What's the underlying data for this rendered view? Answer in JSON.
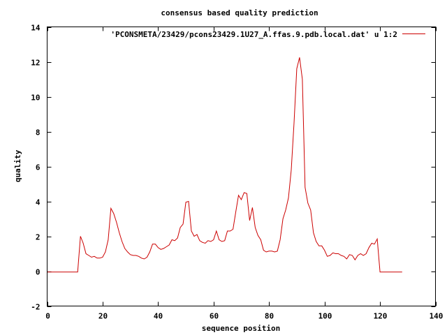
{
  "chart_data": {
    "type": "line",
    "title": "consensus based quality prediction",
    "xlabel": "sequence position",
    "ylabel": "quality",
    "xlim": [
      0,
      140
    ],
    "ylim": [
      -2,
      14
    ],
    "xticks": [
      0,
      20,
      40,
      60,
      80,
      100,
      120,
      140
    ],
    "yticks": [
      -2,
      0,
      2,
      4,
      6,
      8,
      10,
      12,
      14
    ],
    "grid": false,
    "legend": "top-right",
    "series": [
      {
        "name": "'PCONSMETA/23429/pcons23429.1U27_A.ffas.9.pdb.local.dat' u 1:2",
        "color": "#cc0000",
        "x": [
          0,
          1,
          2,
          3,
          4,
          5,
          6,
          7,
          8,
          9,
          10,
          11,
          12,
          13,
          14,
          15,
          16,
          17,
          18,
          19,
          20,
          21,
          22,
          23,
          24,
          25,
          26,
          27,
          28,
          29,
          30,
          31,
          32,
          33,
          34,
          35,
          36,
          37,
          38,
          39,
          40,
          41,
          42,
          43,
          44,
          45,
          46,
          47,
          48,
          49,
          50,
          51,
          52,
          53,
          54,
          55,
          56,
          57,
          58,
          59,
          60,
          61,
          62,
          63,
          64,
          65,
          66,
          67,
          68,
          69,
          70,
          71,
          72,
          73,
          74,
          75,
          76,
          77,
          78,
          79,
          80,
          81,
          82,
          83,
          84,
          85,
          86,
          87,
          88,
          89,
          90,
          91,
          92,
          93,
          94,
          95,
          96,
          97,
          98,
          99,
          100,
          101,
          102,
          103,
          104,
          105,
          106,
          107,
          108,
          109,
          110,
          111,
          112,
          113,
          114,
          115,
          116,
          117,
          118,
          119,
          120,
          121,
          122,
          123,
          124,
          125,
          126,
          127,
          128
        ],
        "y": [
          -0.05,
          -0.05,
          -0.05,
          -0.05,
          -0.05,
          -0.05,
          -0.05,
          -0.05,
          -0.05,
          -0.05,
          -0.05,
          -0.05,
          2.0,
          1.6,
          1.0,
          0.9,
          0.8,
          0.85,
          0.75,
          0.75,
          0.8,
          1.1,
          1.8,
          3.6,
          3.3,
          2.8,
          2.2,
          1.7,
          1.3,
          1.1,
          0.95,
          0.9,
          0.9,
          0.85,
          0.75,
          0.7,
          0.8,
          1.1,
          1.55,
          1.55,
          1.35,
          1.25,
          1.3,
          1.4,
          1.5,
          1.8,
          1.75,
          1.9,
          2.5,
          2.7,
          3.95,
          4.0,
          2.3,
          2.0,
          2.1,
          1.75,
          1.65,
          1.6,
          1.75,
          1.7,
          1.8,
          2.3,
          1.8,
          1.7,
          1.75,
          2.3,
          2.3,
          2.4,
          3.4,
          4.35,
          4.1,
          4.5,
          4.45,
          2.9,
          3.65,
          2.5,
          2.05,
          1.8,
          1.2,
          1.1,
          1.15,
          1.15,
          1.1,
          1.15,
          1.8,
          3.0,
          3.5,
          4.2,
          5.8,
          8.5,
          11.6,
          12.25,
          11.0,
          4.8,
          3.9,
          3.5,
          2.2,
          1.7,
          1.45,
          1.45,
          1.2,
          0.85,
          0.9,
          1.05,
          1.0,
          1.0,
          0.9,
          0.85,
          0.7,
          0.95,
          0.9,
          0.65,
          0.9,
          1.0,
          0.9,
          1.0,
          1.35,
          1.6,
          1.55,
          1.85,
          -0.05,
          -0.05,
          -0.05,
          -0.05,
          -0.05,
          -0.05,
          -0.05,
          -0.05,
          -0.05
        ]
      }
    ]
  }
}
